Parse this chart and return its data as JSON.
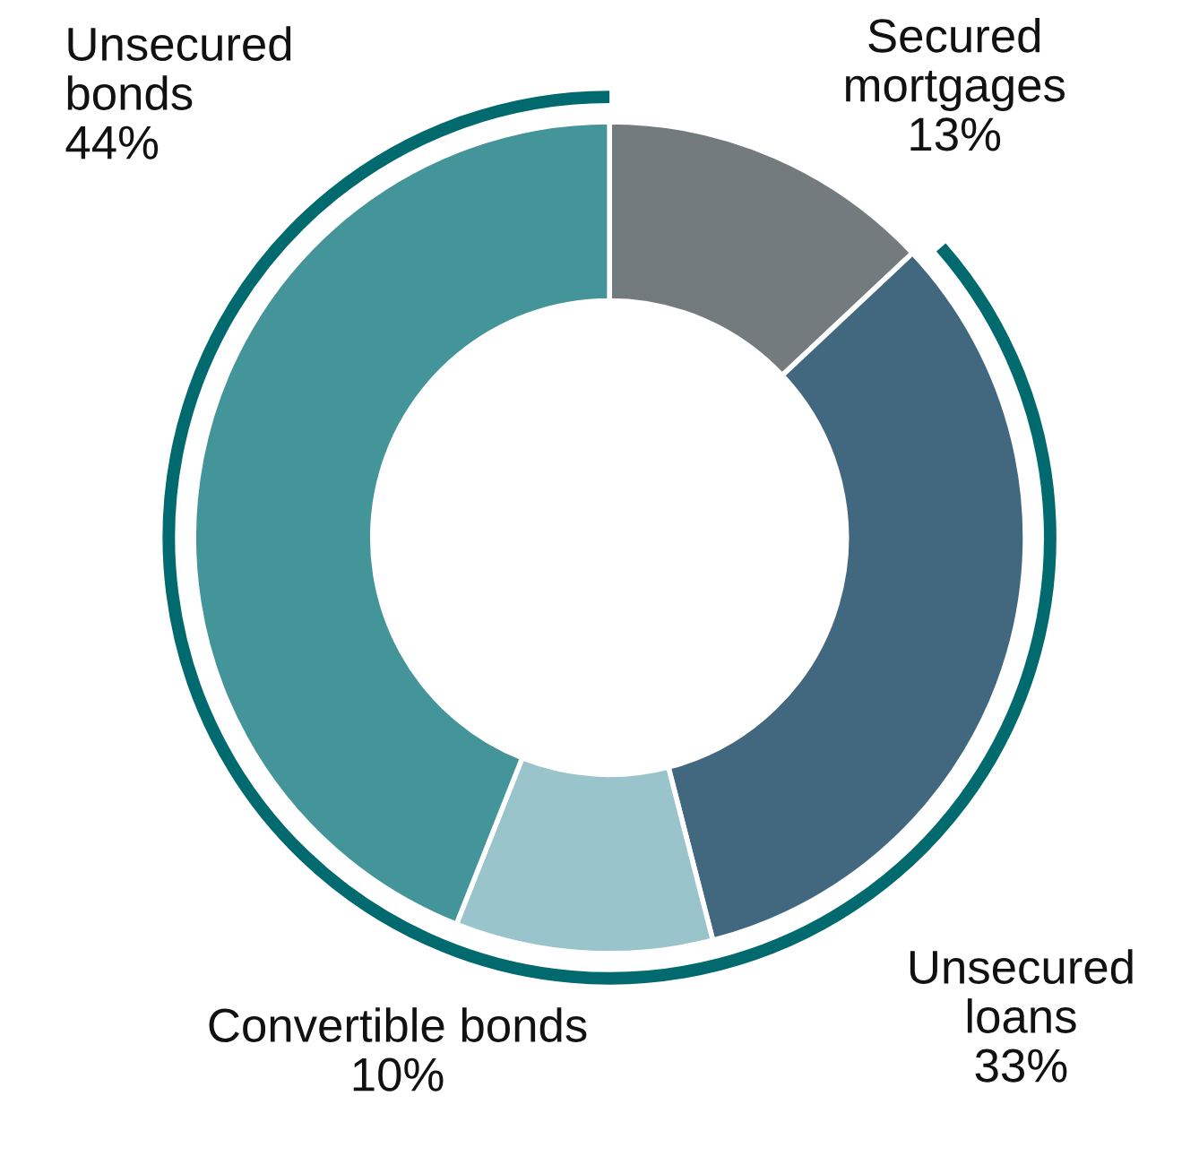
{
  "chart_data": {
    "type": "donut",
    "categories": [
      "Secured\nmortgages",
      "Unsecured\nloans",
      "Convertible bonds",
      "Unsecured\nbonds"
    ],
    "values": [
      13,
      33,
      10,
      44
    ],
    "value_labels": [
      "13%",
      "33%",
      "10%",
      "44%"
    ],
    "colors": [
      "#737b7e",
      "#41687f",
      "#9ac4cb",
      "#44959a"
    ]
  }
}
